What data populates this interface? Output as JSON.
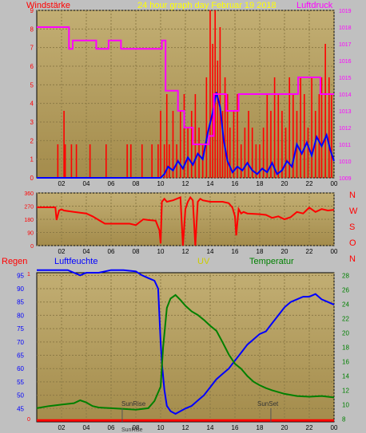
{
  "header": {
    "left_label": "Windstärke",
    "title": "24 hour graph day   Februar 19 2018",
    "right_label": "Luftdruck"
  },
  "bottom_header": {
    "regen": "Regen",
    "humidity": "Luftfeuchte",
    "uv": "UV",
    "temperature": "Temperatur"
  },
  "colors": {
    "panel_top": "#c2ae73",
    "panel_bottom": "#a48c4c",
    "wind_bars": "#ff0000",
    "wind_avg": "#0000ff",
    "pressure": "#ff00ff",
    "direction": "#ff0000",
    "humidity": "#0000ff",
    "temperature": "#008000",
    "rain": "#ff0000",
    "left_axis_text": "#ff0000",
    "right_axis_text_top": "#ff00ff",
    "right_axis_text_bottom": "#008000",
    "humidity_axis_text": "#0000ff"
  },
  "chart_data": [
    {
      "type": "line",
      "name": "wind-pressure",
      "x_ticks": [
        "02",
        "04",
        "06",
        "08",
        "10",
        "12",
        "14",
        "16",
        "18",
        "20",
        "22",
        "00"
      ],
      "left_axis": {
        "label": "Windstärke",
        "ylim": [
          0,
          9
        ],
        "ticks": [
          0,
          1,
          2,
          3,
          4,
          5,
          6,
          7,
          8,
          9
        ]
      },
      "right_axis": {
        "label": "Luftdruck",
        "ylim": [
          1009,
          1019
        ],
        "ticks": [
          1009,
          1010,
          1011,
          1012,
          1013,
          1014,
          1015,
          1016,
          1017,
          1018,
          1019
        ]
      },
      "series": [
        {
          "name": "wind gust",
          "axis": "left",
          "style": "bars",
          "x": [
            1.7,
            2.2,
            2.3,
            2.8,
            3.2,
            4.3,
            5.6,
            7.3,
            7.6,
            8.5,
            9.3,
            9.8,
            10.0,
            10.3,
            10.5,
            10.7,
            11.0,
            11.3,
            11.6,
            11.9,
            12.2,
            12.5,
            12.8,
            13.1,
            13.4,
            13.7,
            14.0,
            14.2,
            14.4,
            14.6,
            14.8,
            15.0,
            15.2,
            15.4,
            15.6,
            15.9,
            16.2,
            16.5,
            16.8,
            17.1,
            17.4,
            17.7,
            18.0,
            18.3,
            18.6,
            18.9,
            19.2,
            19.5,
            19.8,
            20.1,
            20.4,
            20.7,
            21.0,
            21.3,
            21.6,
            21.9,
            22.2,
            22.5,
            22.8,
            23.0,
            23.3,
            23.6,
            23.8
          ],
          "y": [
            1.8,
            3.6,
            1.8,
            1.8,
            1.8,
            1.8,
            1.8,
            1.8,
            1.8,
            1.8,
            1.8,
            1.8,
            3.6,
            1.8,
            4.5,
            1.8,
            3.6,
            1.8,
            3.6,
            4.5,
            2.7,
            3.6,
            4.5,
            2.7,
            1.8,
            5.4,
            9.0,
            7.2,
            9.0,
            6.3,
            8.1,
            3.6,
            5.4,
            4.5,
            2.7,
            3.6,
            4.5,
            1.8,
            2.7,
            3.6,
            2.7,
            1.8,
            1.8,
            2.7,
            4.5,
            3.6,
            5.4,
            4.5,
            3.6,
            2.7,
            5.4,
            4.5,
            3.6,
            5.4,
            4.5,
            2.7,
            5.4,
            3.6,
            4.5,
            5.4,
            7.2,
            5.4,
            4.5
          ]
        },
        {
          "name": "wind average",
          "axis": "left",
          "x": [
            0,
            10.0,
            10.3,
            10.6,
            11.0,
            11.4,
            11.8,
            12.2,
            12.6,
            13.0,
            13.4,
            13.8,
            14.2,
            14.5,
            14.8,
            15.1,
            15.4,
            15.8,
            16.2,
            16.6,
            17.0,
            17.4,
            17.8,
            18.2,
            18.6,
            19.0,
            19.4,
            19.8,
            20.2,
            20.6,
            21.0,
            21.4,
            21.8,
            22.2,
            22.6,
            23.0,
            23.4,
            23.7,
            24.0
          ],
          "y": [
            0,
            0,
            0.2,
            0.6,
            0.4,
            0.9,
            0.5,
            1.1,
            0.7,
            1.3,
            1.0,
            2.4,
            3.5,
            4.6,
            3.8,
            2.0,
            0.9,
            0.3,
            0.6,
            0.4,
            0.8,
            0.4,
            0.2,
            0.5,
            0.3,
            0.8,
            0.2,
            0.4,
            0.9,
            0.6,
            1.8,
            1.3,
            1.9,
            1.2,
            2.2,
            1.7,
            2.3,
            1.5,
            0.9
          ]
        },
        {
          "name": "pressure",
          "axis": "right",
          "x": [
            0,
            2.6,
            2.6,
            2.9,
            2.9,
            4.8,
            4.8,
            5.8,
            5.8,
            6.8,
            6.8,
            10.1,
            10.1,
            10.4,
            10.4,
            11.4,
            11.4,
            11.9,
            11.9,
            12.6,
            12.6,
            13.9,
            13.9,
            14.3,
            14.3,
            15.3,
            15.3,
            16.3,
            16.3,
            21.1,
            21.1,
            22.9,
            22.9,
            24.0
          ],
          "y": [
            1018,
            1018,
            1016.7,
            1016.7,
            1017.2,
            1017.2,
            1016.7,
            1016.7,
            1017.2,
            1017.2,
            1016.7,
            1016.7,
            1017.2,
            1017.2,
            1014.2,
            1014.2,
            1013.0,
            1013.0,
            1012.0,
            1012.0,
            1011.0,
            1011.0,
            1011.5,
            1011.5,
            1014.0,
            1014.0,
            1013.0,
            1013.0,
            1014.0,
            1014.0,
            1015.0,
            1015.0,
            1014.0,
            1014.0
          ]
        }
      ]
    },
    {
      "type": "line",
      "name": "wind-direction",
      "x_ticks": [
        "02",
        "04",
        "06",
        "08",
        "10",
        "12",
        "14",
        "16",
        "18",
        "20",
        "22",
        "00"
      ],
      "left_axis": {
        "ylim": [
          0,
          360
        ],
        "ticks": [
          0,
          90,
          180,
          270,
          360
        ]
      },
      "right_labels": [
        "N",
        "W",
        "S",
        "O",
        "N"
      ],
      "series": [
        {
          "name": "direction",
          "x": [
            0,
            1.5,
            1.6,
            1.8,
            2.0,
            2.2,
            3.0,
            4.0,
            4.5,
            5.5,
            6.5,
            7.5,
            8.0,
            8.6,
            9.0,
            9.6,
            9.9,
            10.0,
            10.1,
            10.3,
            10.5,
            11.0,
            11.6,
            11.8,
            12.0,
            12.2,
            12.4,
            12.6,
            12.8,
            13.0,
            13.2,
            13.4,
            14.0,
            15.0,
            15.5,
            15.8,
            16.0,
            16.1,
            16.3,
            16.5,
            16.7,
            17.0,
            18.0,
            18.5,
            19.0,
            19.5,
            20.0,
            20.5,
            21.0,
            21.5,
            22.0,
            22.5,
            23.0,
            23.5,
            24.0
          ],
          "y": [
            262,
            262,
            175,
            240,
            248,
            240,
            230,
            220,
            200,
            150,
            150,
            150,
            140,
            180,
            175,
            170,
            105,
            15,
            300,
            320,
            300,
            310,
            330,
            0,
            250,
            300,
            330,
            310,
            0,
            300,
            320,
            310,
            300,
            300,
            290,
            260,
            200,
            70,
            250,
            220,
            230,
            220,
            215,
            210,
            190,
            200,
            180,
            195,
            230,
            220,
            260,
            230,
            250,
            240,
            245
          ]
        }
      ]
    },
    {
      "type": "line",
      "name": "humidity-temperature",
      "x_ticks": [
        "02",
        "04",
        "06",
        "08",
        "10",
        "12",
        "14",
        "16",
        "18",
        "20",
        "22",
        "00"
      ],
      "left_axis": {
        "label": "Luftfeuchte",
        "ylim": [
          40,
          96
        ],
        "ticks": [
          45,
          50,
          55,
          60,
          65,
          70,
          75,
          80,
          85,
          90,
          95
        ]
      },
      "right_axis": {
        "label": "Temperatur",
        "ylim": [
          7.6,
          28.4
        ],
        "ticks": [
          8,
          10,
          12,
          14,
          16,
          18,
          20,
          22,
          24,
          26,
          28
        ]
      },
      "annotations": [
        "SunRise",
        "SunSet"
      ],
      "series": [
        {
          "name": "humidity",
          "axis": "left",
          "x": [
            0,
            2.5,
            3.5,
            4.0,
            5.0,
            6.0,
            7.0,
            8.0,
            8.5,
            9.0,
            9.5,
            9.8,
            10.0,
            10.1,
            10.3,
            10.5,
            10.8,
            11.2,
            11.6,
            12.0,
            12.5,
            13.0,
            13.5,
            14.0,
            14.5,
            15.0,
            15.5,
            16.0,
            16.5,
            17.0,
            17.5,
            18.0,
            18.5,
            19.0,
            19.5,
            20.0,
            20.5,
            21.0,
            21.5,
            22.0,
            22.5,
            23.0,
            23.5,
            24.0
          ],
          "y": [
            97,
            97,
            95,
            96,
            96,
            97,
            97,
            96.5,
            95,
            94,
            93,
            90,
            70,
            62,
            52,
            46,
            44,
            43,
            44,
            45,
            46,
            48,
            50,
            53,
            56,
            58,
            60,
            63,
            66,
            69,
            71,
            73,
            74,
            77,
            80,
            83,
            85,
            86,
            87,
            87,
            88,
            86,
            85,
            84
          ]
        },
        {
          "name": "temperature",
          "axis": "right",
          "x": [
            0,
            1.0,
            2.0,
            3.0,
            3.5,
            4.0,
            4.5,
            5.0,
            6.0,
            7.0,
            8.0,
            9.0,
            9.5,
            10.0,
            10.2,
            10.5,
            10.8,
            11.2,
            11.6,
            12.0,
            12.5,
            13.0,
            13.5,
            14.0,
            14.5,
            15.0,
            15.5,
            16.0,
            16.5,
            17.0,
            17.5,
            18.0,
            18.5,
            19.0,
            20.0,
            21.0,
            22.0,
            23.0,
            24.0
          ],
          "y": [
            9.5,
            9.8,
            10.0,
            10.2,
            10.6,
            10.3,
            9.8,
            9.6,
            9.5,
            9.4,
            9.3,
            9.5,
            10.5,
            12.5,
            18.0,
            23.5,
            24.8,
            25.3,
            24.6,
            23.8,
            23.0,
            22.5,
            21.8,
            21.0,
            20.3,
            18.7,
            17.0,
            15.7,
            15.0,
            14.0,
            13.2,
            12.7,
            12.3,
            12.0,
            11.5,
            11.2,
            11.1,
            11.2,
            11.0
          ]
        },
        {
          "name": "rain",
          "axis": "left",
          "x": [
            0,
            24
          ],
          "y": [
            40.5,
            40.5
          ]
        }
      ]
    }
  ]
}
